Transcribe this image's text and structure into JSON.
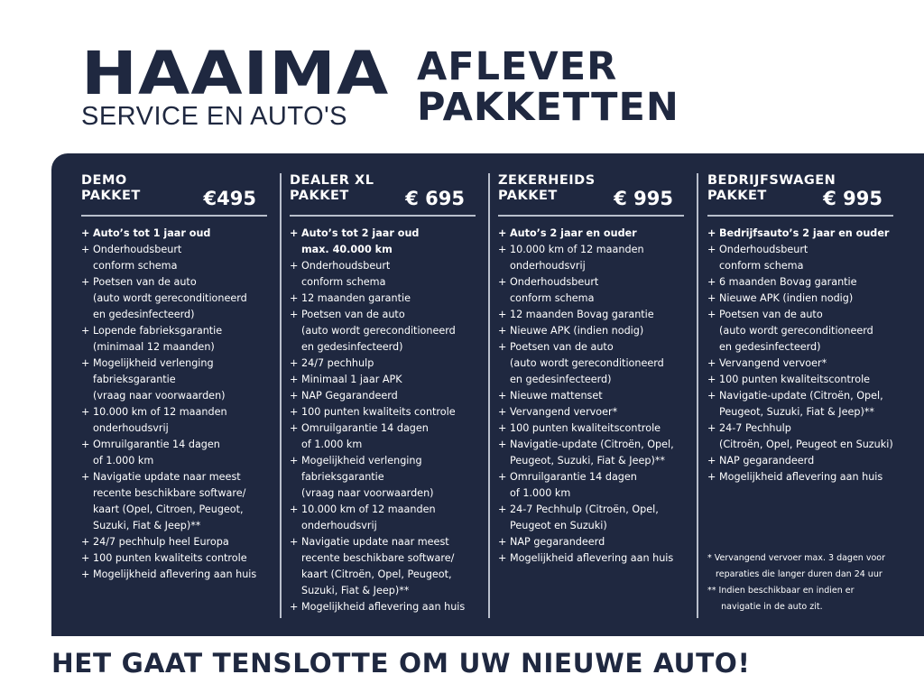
{
  "brand": {
    "name": "HAAIMA",
    "tagline": "SERVICE EN AUTO'S"
  },
  "title": {
    "line1": "AFLEVER",
    "line2": "PAKKETTEN"
  },
  "colors": {
    "navy": "#1f2840",
    "divider": "#b9bfcc",
    "text_on_dark": "#ffffff"
  },
  "packages": [
    {
      "name": "DEMO\nPAKKET",
      "price": "€495",
      "items": [
        [
          "Auto’s tot 1 jaar oud"
        ],
        [
          "Onderhoudsbeurt",
          "conform schema"
        ],
        [
          "Poetsen van de auto",
          "(auto wordt gereconditioneerd",
          "en gedesinfecteerd)"
        ],
        [
          "Lopende fabrieksgarantie",
          "(minimaal 12 maanden)"
        ],
        [
          "Mogelijkheid verlenging",
          "fabrieksgarantie",
          "(vraag naar voorwaarden)"
        ],
        [
          "10.000 km of 12 maanden",
          "onderhoudsvrij"
        ],
        [
          "Omruilgarantie 14 dagen",
          "of 1.000 km"
        ],
        [
          "Navigatie update naar meest",
          "recente beschikbare software/",
          "kaart (Opel, Citroen,  Peugeot,",
          "Suzuki, Fiat & Jeep)**"
        ],
        [
          "24/7 pechhulp heel Europa"
        ],
        [
          "100 punten kwaliteits controle"
        ],
        [
          "Mogelijkheid aflevering aan huis"
        ]
      ]
    },
    {
      "name": "DEALER XL\nPAKKET",
      "price": "€ 695",
      "items": [
        [
          "Auto’s tot 2 jaar oud",
          "max. 40.000 km"
        ],
        [
          "Onderhoudsbeurt",
          "conform schema"
        ],
        [
          "12 maanden garantie"
        ],
        [
          "Poetsen van de auto",
          "(auto wordt gereconditioneerd",
          "en gedesinfecteerd)"
        ],
        [
          "24/7 pechhulp"
        ],
        [
          "Minimaal 1 jaar APK"
        ],
        [
          "NAP Gegarandeerd"
        ],
        [
          "100 punten kwaliteits controle"
        ],
        [
          "Omruilgarantie 14 dagen",
          "of 1.000 km"
        ],
        [
          "Mogelijkheid verlenging",
          "fabrieksgarantie",
          "(vraag naar voorwaarden)"
        ],
        [
          "10.000 km of 12 maanden",
          "onderhoudsvrij"
        ],
        [
          "Navigatie update naar meest",
          "recente beschikbare software/",
          "kaart (Citroën, Opel, Peugeot,",
          "Suzuki, Fiat & Jeep)**"
        ],
        [
          "Mogelijkheid aflevering aan huis"
        ]
      ]
    },
    {
      "name": "ZEKERHEIDS\nPAKKET",
      "price": "€ 995",
      "items": [
        [
          "Auto’s 2 jaar en ouder"
        ],
        [
          "10.000 km of 12 maanden",
          "onderhoudsvrij"
        ],
        [
          "Onderhoudsbeurt",
          "conform schema"
        ],
        [
          "12 maanden Bovag garantie"
        ],
        [
          "Nieuwe APK (indien nodig)"
        ],
        [
          "Poetsen van de auto",
          "(auto wordt gereconditioneerd",
          "en gedesinfecteerd)"
        ],
        [
          "Nieuwe mattenset"
        ],
        [
          "Vervangend vervoer*"
        ],
        [
          "100 punten kwaliteitscontrole"
        ],
        [
          "Navigatie-update (Citroën, Opel,",
          "Peugeot, Suzuki, Fiat & Jeep)**"
        ],
        [
          "Omruilgarantie 14 dagen",
          "of 1.000 km"
        ],
        [
          "24-7 Pechhulp (Citroën, Opel,",
          "Peugeot en Suzuki)"
        ],
        [
          "NAP gegarandeerd"
        ],
        [
          "Mogelijkheid aflevering aan huis"
        ]
      ]
    },
    {
      "name": "BEDRIJFSWAGEN\nPAKKET",
      "price": "€ 995",
      "items": [
        [
          "Bedrijfsauto’s 2 jaar en ouder"
        ],
        [
          "Onderhoudsbeurt",
          "conform schema"
        ],
        [
          "6 maanden Bovag garantie"
        ],
        [
          "Nieuwe APK (indien nodig)"
        ],
        [
          "Poetsen van de auto",
          "(auto wordt gereconditioneerd",
          "en gedesinfecteerd)"
        ],
        [
          "Vervangend vervoer*"
        ],
        [
          "100 punten kwaliteitscontrole"
        ],
        [
          "Navigatie-update (Citroën, Opel,",
          "Peugeot, Suzuki, Fiat & Jeep)**"
        ],
        [
          "24-7 Pechhulp",
          "(Citroën, Opel, Peugeot en Suzuki)"
        ],
        [
          "NAP gegarandeerd"
        ],
        [
          "Mogelijkheid aflevering aan huis"
        ]
      ]
    }
  ],
  "bullet": "+",
  "footnotes": [
    "* Vervangend vervoer max. 3 dagen voor",
    "   reparaties die langer duren dan 24 uur",
    "** Indien beschikbaar en indien er",
    "     navigatie in de auto zit."
  ],
  "slogan": "HET GAAT TENSLOTTE OM UW NIEUWE AUTO!"
}
